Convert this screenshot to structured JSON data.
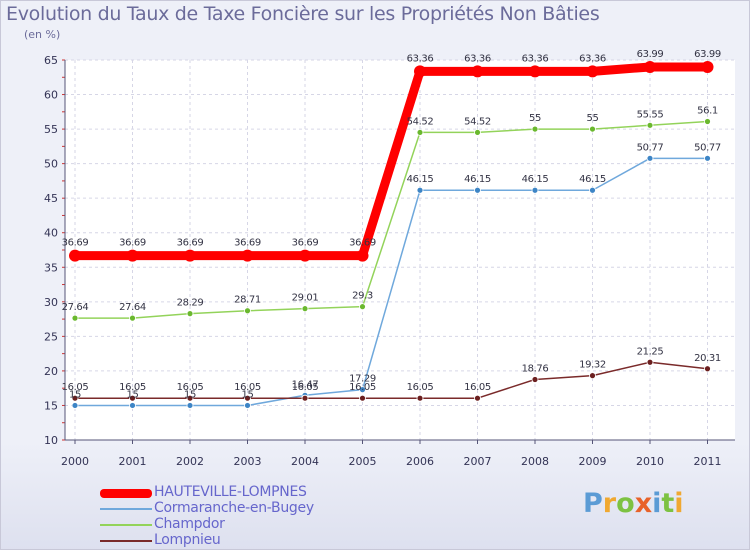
{
  "chart_data": {
    "type": "line",
    "title": "Evolution du Taux de Taxe Foncière sur les Propriétés Non Bâties",
    "ylabel": "(en %)",
    "xlabel": "",
    "ylim": [
      10,
      65
    ],
    "yticks": [
      "10",
      "15",
      "20",
      "25",
      "30",
      "35",
      "40",
      "45",
      "50",
      "55",
      "60",
      "65"
    ],
    "categories": [
      "2000",
      "2001",
      "2002",
      "2003",
      "2004",
      "2005",
      "2006",
      "2007",
      "2008",
      "2009",
      "2010",
      "2011"
    ],
    "grid": true,
    "legend_position": "bottom-left",
    "series": [
      {
        "name": "HAUTEVILLE-LOMPNES",
        "color": "#ff0000",
        "marker_color": "#ff0000",
        "values": [
          36.69,
          36.69,
          36.69,
          36.69,
          36.69,
          36.69,
          63.36,
          63.36,
          63.36,
          63.36,
          63.99,
          63.99
        ],
        "labels": [
          "36.69",
          "36.69",
          "36.69",
          "36.69",
          "36.69",
          "36.69",
          "63.36",
          "63.36",
          "63.36",
          "63.36",
          "63.99",
          "63.99"
        ]
      },
      {
        "name": "Cormaranche-en-Bugey",
        "color": "#6fa8dc",
        "marker_color": "#3d85c6",
        "values": [
          15,
          15,
          15,
          15,
          16.47,
          17.29,
          46.15,
          46.15,
          46.15,
          46.15,
          50.77,
          50.77
        ],
        "labels": [
          "15",
          "15",
          "15",
          "15",
          "16.47",
          "17.29",
          "46.15",
          "46.15",
          "46.15",
          "46.15",
          "50.77",
          "50.77"
        ]
      },
      {
        "name": "Champdor",
        "color": "#93d35a",
        "marker_color": "#6ab82e",
        "values": [
          27.64,
          27.64,
          28.29,
          28.71,
          29.01,
          29.3,
          54.52,
          54.52,
          55,
          55,
          55.55,
          56.1
        ],
        "labels": [
          "27.64",
          "27.64",
          "28.29",
          "28.71",
          "29.01",
          "29.3",
          "54.52",
          "54.52",
          "55",
          "55",
          "55.55",
          "56.1"
        ]
      },
      {
        "name": "Lompnieu",
        "color": "#7a2a2a",
        "marker_color": "#6b1f1f",
        "values": [
          16.05,
          16.05,
          16.05,
          16.05,
          16.05,
          16.05,
          16.05,
          16.05,
          18.76,
          19.32,
          21.25,
          20.31
        ],
        "labels": [
          "16.05",
          "16.05",
          "16.05",
          "16.05",
          "16.05",
          "16.05",
          "16.05",
          "16.05",
          "18.76",
          "19.32",
          "21.25",
          "20.31"
        ]
      }
    ]
  },
  "logo": {
    "text": "Proxiti",
    "colors": [
      "#5b9bd5",
      "#f0a830",
      "#7dc242",
      "#e8622a",
      "#5b9bd5",
      "#7dc242",
      "#f0a830"
    ]
  }
}
